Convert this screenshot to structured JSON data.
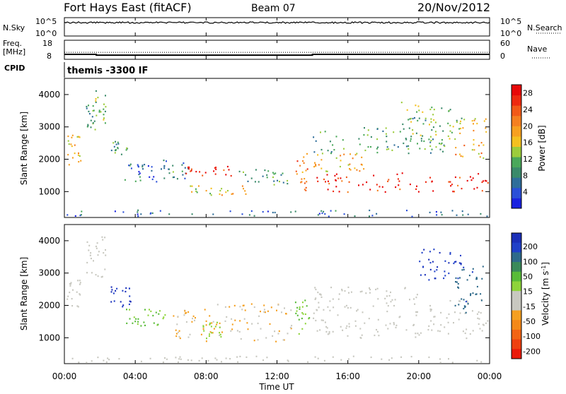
{
  "header": {
    "station": "Fort Hays East (fitACF)",
    "beam": "Beam 07",
    "date": "20/Nov/2012"
  },
  "colors": {
    "power_scale": [
      "#1a22e0",
      "#2a4fd8",
      "#2f6e9a",
      "#3a8a6a",
      "#4aa85a",
      "#9ccc3c",
      "#f4c020",
      "#f7a020",
      "#f58020",
      "#f25a18",
      "#ee2a10",
      "#e80808"
    ],
    "velocity_scale": [
      "#1b2fb8",
      "#2040c8",
      "#2e6a8a",
      "#3a8a5a",
      "#58bb38",
      "#8ed43a",
      "#c8c8c0",
      "#c8c8c0",
      "#f5a020",
      "#f48818",
      "#f26414",
      "#ee4010",
      "#ea1a0a"
    ],
    "ground_scatter": "#c8c8c0"
  },
  "chart_data": [
    {
      "type": "line",
      "name": "noise-panel",
      "ylabel_left": "N.Sky",
      "ylabel_right": "N.Search",
      "left_ticks": [
        "10^5",
        "10^0"
      ],
      "right_ticks": [
        "10^5",
        "10^0"
      ],
      "xlim": [
        0,
        24
      ]
    },
    {
      "type": "line",
      "name": "frequency-panel",
      "ylabel_left": "Freq.\n[MHz]",
      "ylabel_right": "Nave",
      "left_ticks": [
        18,
        8
      ],
      "right_ticks": [
        60,
        0
      ],
      "freq_series": {
        "x": [
          0,
          1.8,
          1.8,
          14.0,
          14.0,
          24
        ],
        "y": [
          10.6,
          10.6,
          10.2,
          10.2,
          10.6,
          10.6
        ]
      },
      "nave_series": {
        "x": [
          0,
          24
        ],
        "y": [
          22,
          22
        ]
      },
      "xlim": [
        0,
        24
      ]
    },
    {
      "type": "table",
      "name": "cpid-panel",
      "label": "CPID",
      "value": "themis -3300 IF"
    },
    {
      "type": "heatmap",
      "name": "power-panel",
      "ylabel": "Slant Range [km]",
      "yticks": [
        1000,
        2000,
        3000,
        4000
      ],
      "ylim": [
        200,
        4500
      ],
      "xlim": [
        0,
        24
      ],
      "colorbar": {
        "label": "Power [dB]",
        "ticks": [
          4,
          8,
          12,
          16,
          20,
          24,
          28
        ],
        "range": [
          0,
          30
        ]
      },
      "regions": [
        {
          "t": [
            0.1,
            0.9
          ],
          "r": [
            1800,
            2800
          ],
          "v": 18
        },
        {
          "t": [
            1.2,
            1.6
          ],
          "r": [
            3000,
            3800
          ],
          "v": 9
        },
        {
          "t": [
            1.6,
            2.3
          ],
          "r": [
            2900,
            4200
          ],
          "v": 12
        },
        {
          "t": [
            2.6,
            3.6
          ],
          "r": [
            2100,
            2600
          ],
          "v": 10
        },
        {
          "t": [
            3.3,
            5.6
          ],
          "r": [
            1300,
            2000
          ],
          "v": 6
        },
        {
          "t": [
            5.6,
            7.0
          ],
          "r": [
            1400,
            2000
          ],
          "v": 8
        },
        {
          "t": [
            6.8,
            9.8
          ],
          "r": [
            1500,
            1800
          ],
          "v": 27
        },
        {
          "t": [
            7.0,
            10.5
          ],
          "r": [
            900,
            1200
          ],
          "v": 16
        },
        {
          "t": [
            9.8,
            12.6
          ],
          "r": [
            1200,
            1700
          ],
          "v": 10
        },
        {
          "t": [
            13.0,
            13.7
          ],
          "r": [
            1000,
            2200
          ],
          "v": 22
        },
        {
          "t": [
            14.0,
            24.0
          ],
          "r": [
            1000,
            1600
          ],
          "v": 27
        },
        {
          "t": [
            14.0,
            17.0
          ],
          "r": [
            1600,
            2200
          ],
          "v": 18
        },
        {
          "t": [
            14.0,
            21.5
          ],
          "r": [
            2200,
            3000
          ],
          "v": 10
        },
        {
          "t": [
            19.0,
            22.5
          ],
          "r": [
            2400,
            3800
          ],
          "v": 12
        },
        {
          "t": [
            22.0,
            23.8
          ],
          "r": [
            2000,
            3300
          ],
          "v": 18
        },
        {
          "t": [
            0.0,
            24.0
          ],
          "r": [
            250,
            450
          ],
          "v": 6
        }
      ]
    },
    {
      "type": "heatmap",
      "name": "velocity-panel",
      "ylabel": "Slant Range [km]",
      "yticks": [
        1000,
        2000,
        3000,
        4000
      ],
      "ylim": [
        200,
        4500
      ],
      "xlim": [
        0,
        24
      ],
      "xticks": [
        "00:00",
        "04:00",
        "08:00",
        "12:00",
        "16:00",
        "20:00",
        "00:00"
      ],
      "xlabel": "Time UT",
      "colorbar": {
        "label": "Velocity [m s^-1]",
        "ticks": [
          200,
          100,
          50,
          15,
          -15,
          -50,
          -100,
          -200
        ],
        "range": [
          -250,
          250
        ]
      },
      "regions": [
        {
          "t": [
            0.1,
            0.9
          ],
          "r": [
            1900,
            2800
          ],
          "v": 0
        },
        {
          "t": [
            1.2,
            2.3
          ],
          "r": [
            2900,
            4200
          ],
          "v": 0
        },
        {
          "t": [
            2.6,
            3.8
          ],
          "r": [
            1900,
            2600
          ],
          "v": 210
        },
        {
          "t": [
            3.4,
            6.0
          ],
          "r": [
            1300,
            1900
          ],
          "v": 60
        },
        {
          "t": [
            6.0,
            8.0
          ],
          "r": [
            900,
            1900
          ],
          "v": -60
        },
        {
          "t": [
            8.0,
            12.8
          ],
          "r": [
            900,
            2100
          ],
          "v": -55
        },
        {
          "t": [
            7.8,
            8.8
          ],
          "r": [
            1000,
            1500
          ],
          "v": 40
        },
        {
          "t": [
            13.0,
            13.8
          ],
          "r": [
            1100,
            2200
          ],
          "v": 55
        },
        {
          "t": [
            14.0,
            24.0
          ],
          "r": [
            1000,
            2200
          ],
          "v": 0
        },
        {
          "t": [
            14.0,
            21.0
          ],
          "r": [
            2200,
            2600
          ],
          "v": 0
        },
        {
          "t": [
            20.0,
            22.5
          ],
          "r": [
            2800,
            3800
          ],
          "v": 210
        },
        {
          "t": [
            22.0,
            23.7
          ],
          "r": [
            1800,
            3300
          ],
          "v": 160
        },
        {
          "t": [
            0.0,
            24.0
          ],
          "r": [
            250,
            450
          ],
          "v": -40
        }
      ]
    }
  ]
}
